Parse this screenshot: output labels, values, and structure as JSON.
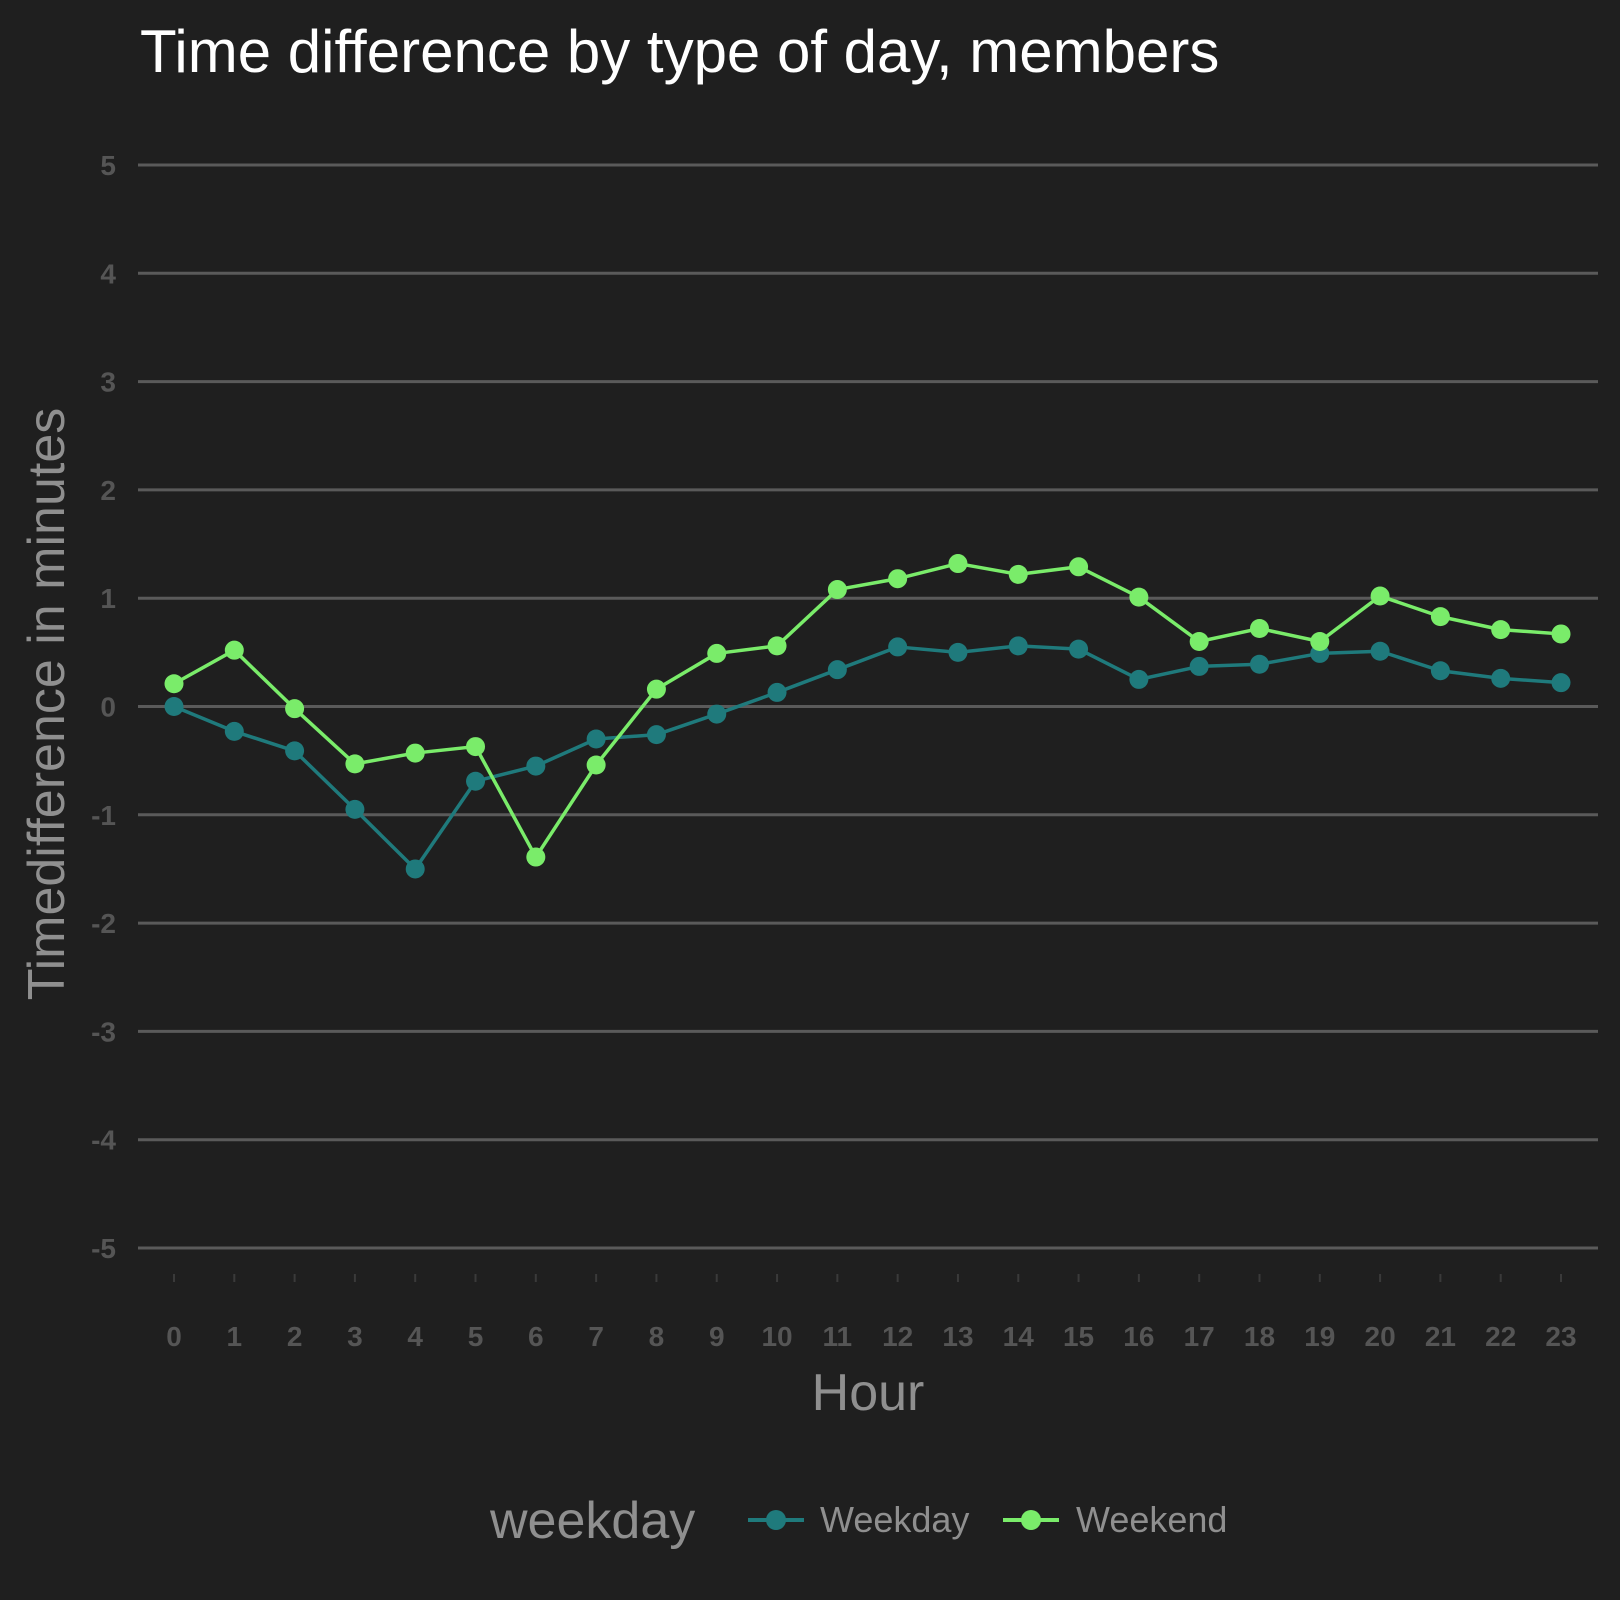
{
  "chart_data": {
    "type": "line",
    "title": "Time difference by type of day, members",
    "xlabel": "Hour",
    "ylabel": "Timedifference in minutes",
    "categories": [
      "0",
      "1",
      "2",
      "3",
      "4",
      "5",
      "6",
      "7",
      "8",
      "9",
      "10",
      "11",
      "12",
      "13",
      "14",
      "15",
      "16",
      "17",
      "18",
      "19",
      "20",
      "21",
      "22",
      "23"
    ],
    "y_ticks": [
      "5",
      "4",
      "3",
      "2",
      "1",
      "0",
      "-1",
      "-2",
      "-3",
      "-4",
      "-5"
    ],
    "ylim": [
      -5,
      5
    ],
    "grid": "horizontal",
    "legend": {
      "title": "weekday",
      "position": "bottom"
    },
    "series": [
      {
        "name": "Weekday",
        "color": "#1f7a7c",
        "values": [
          0.0,
          -0.23,
          -0.41,
          -0.95,
          -1.5,
          -0.69,
          -0.55,
          -0.3,
          -0.26,
          -0.07,
          0.13,
          0.34,
          0.55,
          0.5,
          0.56,
          0.53,
          0.25,
          0.37,
          0.39,
          0.49,
          0.51,
          0.33,
          0.26,
          0.22
        ]
      },
      {
        "name": "Weekend",
        "color": "#7aec6a",
        "values": [
          0.21,
          0.52,
          -0.02,
          -0.53,
          -0.43,
          -0.37,
          -1.39,
          -0.54,
          0.16,
          0.49,
          0.56,
          1.08,
          1.18,
          1.32,
          1.22,
          1.29,
          1.01,
          0.6,
          0.72,
          0.6,
          1.02,
          0.83,
          0.71,
          0.67
        ]
      }
    ]
  }
}
